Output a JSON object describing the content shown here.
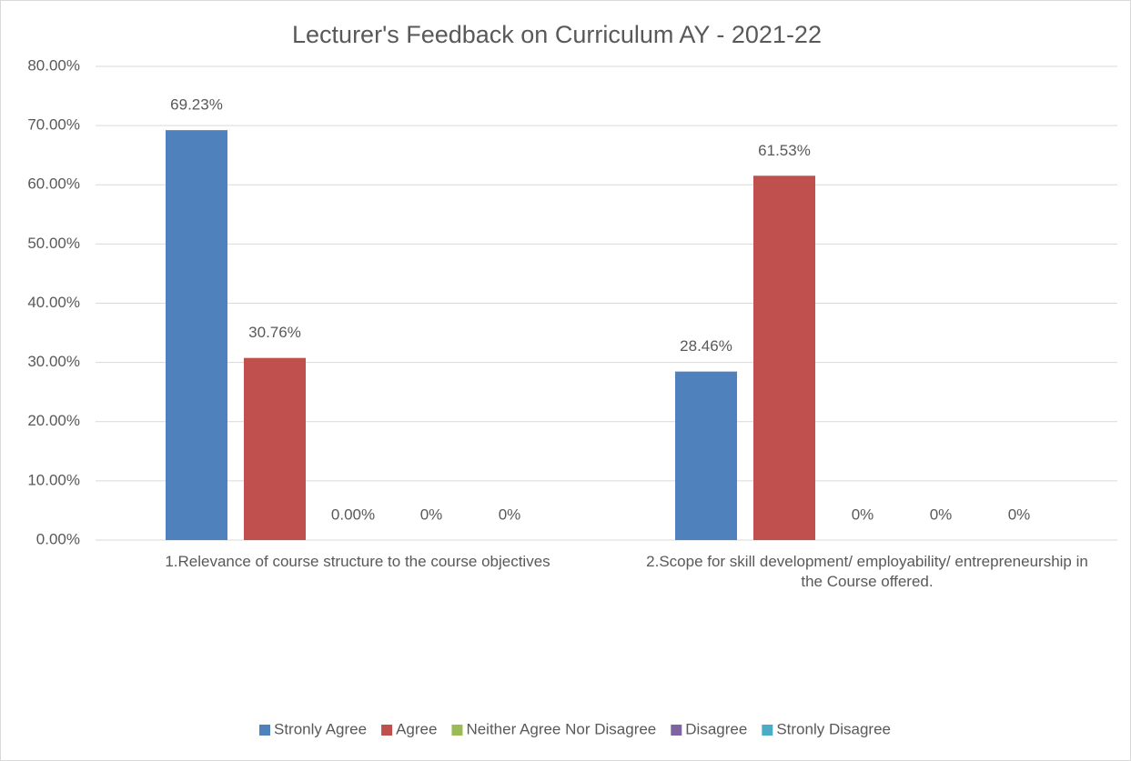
{
  "chart_data": {
    "type": "bar",
    "title": "Lecturer's Feedback on Curriculum AY - 2021-22",
    "categories": [
      "1.Relevance of course structure to the course objectives",
      "2.Scope for skill development/ employability/ entrepreneurship in the Course offered."
    ],
    "series": [
      {
        "name": "Stronly Agree",
        "color": "#4f81bd",
        "values": [
          69.23,
          28.46
        ],
        "value_labels": [
          "69.23%",
          "28.46%"
        ]
      },
      {
        "name": "Agree",
        "color": "#c0504d",
        "values": [
          30.76,
          61.53
        ],
        "value_labels": [
          "30.76%",
          "61.53%"
        ]
      },
      {
        "name": "Neither Agree Nor Disagree",
        "color": "#9bbb59",
        "values": [
          0,
          0
        ],
        "value_labels": [
          "0.00%",
          "0%"
        ]
      },
      {
        "name": "Disagree",
        "color": "#8064a2",
        "values": [
          0,
          0
        ],
        "value_labels": [
          "0%",
          "0%"
        ]
      },
      {
        "name": "Stronly Disagree",
        "color": "#4bacc6",
        "values": [
          0,
          0
        ],
        "value_labels": [
          "0%",
          "0%"
        ]
      }
    ],
    "ylim": [
      0,
      80
    ],
    "yticks": [
      {
        "value": 0,
        "label": "0.00%"
      },
      {
        "value": 10,
        "label": "10.00%"
      },
      {
        "value": 20,
        "label": "20.00%"
      },
      {
        "value": 30,
        "label": "30.00%"
      },
      {
        "value": 40,
        "label": "40.00%"
      },
      {
        "value": 50,
        "label": "50.00%"
      },
      {
        "value": 60,
        "label": "60.00%"
      },
      {
        "value": 70,
        "label": "70.00%"
      },
      {
        "value": 80,
        "label": "80.00%"
      }
    ],
    "grid": true,
    "legend": "bottom"
  }
}
